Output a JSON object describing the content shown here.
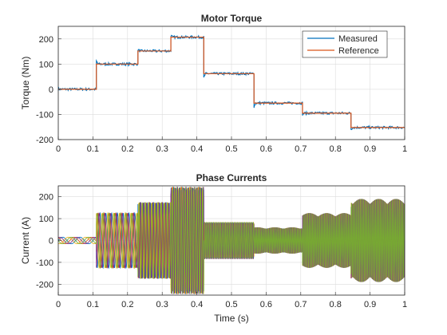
{
  "chart_data": [
    {
      "type": "line",
      "title": "Motor Torque",
      "xlabel": "",
      "ylabel": "Torque (Nm)",
      "xlim": [
        0,
        1
      ],
      "ylim": [
        -200,
        250
      ],
      "xticks": [
        0,
        0.1,
        0.2,
        0.3,
        0.4,
        0.5,
        0.6,
        0.7,
        0.8,
        0.9,
        1
      ],
      "xtick_labels": [
        "0",
        "0.1",
        "0.2",
        "0.3",
        "0.4",
        "0.5",
        "0.6",
        "0.7",
        "0.8",
        "0.9",
        "1"
      ],
      "yticks": [
        -200,
        -100,
        0,
        100,
        200
      ],
      "ytick_labels": [
        "-200",
        "-100",
        "0",
        "100",
        "200"
      ],
      "grid": true,
      "legend_position": "top-right",
      "series": [
        {
          "name": "Measured",
          "color": "#0072BD",
          "noise": 5,
          "steps": [
            {
              "t0": 0,
              "t1": 0.11,
              "value": 0
            },
            {
              "t0": 0.11,
              "t1": 0.23,
              "value": 100
            },
            {
              "t0": 0.23,
              "t1": 0.325,
              "value": 152
            },
            {
              "t0": 0.325,
              "t1": 0.42,
              "value": 207
            },
            {
              "t0": 0.42,
              "t1": 0.565,
              "value": 62
            },
            {
              "t0": 0.565,
              "t1": 0.705,
              "value": -55
            },
            {
              "t0": 0.705,
              "t1": 0.845,
              "value": -95
            },
            {
              "t0": 0.845,
              "t1": 1.0,
              "value": -152
            }
          ]
        },
        {
          "name": "Reference",
          "color": "#D95319",
          "noise": 0,
          "steps": [
            {
              "t0": 0,
              "t1": 0.11,
              "value": 0
            },
            {
              "t0": 0.11,
              "t1": 0.23,
              "value": 100
            },
            {
              "t0": 0.23,
              "t1": 0.325,
              "value": 152
            },
            {
              "t0": 0.325,
              "t1": 0.42,
              "value": 207
            },
            {
              "t0": 0.42,
              "t1": 0.565,
              "value": 62
            },
            {
              "t0": 0.565,
              "t1": 0.705,
              "value": -55
            },
            {
              "t0": 0.705,
              "t1": 0.845,
              "value": -95
            },
            {
              "t0": 0.845,
              "t1": 1.0,
              "value": -152
            }
          ]
        }
      ]
    },
    {
      "type": "line",
      "title": "Phase Currents",
      "xlabel": "Time (s)",
      "ylabel": "Current (A)",
      "xlim": [
        0,
        1
      ],
      "ylim": [
        -250,
        250
      ],
      "xticks": [
        0,
        0.1,
        0.2,
        0.3,
        0.4,
        0.5,
        0.6,
        0.7,
        0.8,
        0.9,
        1
      ],
      "xtick_labels": [
        "0",
        "0.1",
        "0.2",
        "0.3",
        "0.4",
        "0.5",
        "0.6",
        "0.7",
        "0.8",
        "0.9",
        "1"
      ],
      "yticks": [
        -200,
        -100,
        0,
        100,
        200
      ],
      "ytick_labels": [
        "-200",
        "-100",
        "0",
        "100",
        "200"
      ],
      "grid": true,
      "phase_colors": [
        "#0072BD",
        "#D95319",
        "#EDB120",
        "#7E2F8E",
        "#77AC30"
      ],
      "amplitude_segments": [
        {
          "t0": 0,
          "t1": 0.11,
          "amplitude": 15,
          "frequency": 20
        },
        {
          "t0": 0.11,
          "t1": 0.23,
          "amplitude": 125,
          "frequency": 60
        },
        {
          "t0": 0.23,
          "t1": 0.325,
          "amplitude": 175,
          "frequency": 110
        },
        {
          "t0": 0.325,
          "t1": 0.42,
          "amplitude": 245,
          "frequency": 160
        },
        {
          "t0": 0.42,
          "t1": 0.565,
          "amplitude": 85,
          "frequency": 200
        },
        {
          "t0": 0.565,
          "t1": 0.705,
          "amplitude": 60,
          "frequency": 230
        },
        {
          "t0": 0.705,
          "t1": 0.845,
          "amplitude": 125,
          "frequency": 230
        },
        {
          "t0": 0.845,
          "t1": 1.0,
          "amplitude": 190,
          "frequency": 230
        }
      ]
    }
  ]
}
